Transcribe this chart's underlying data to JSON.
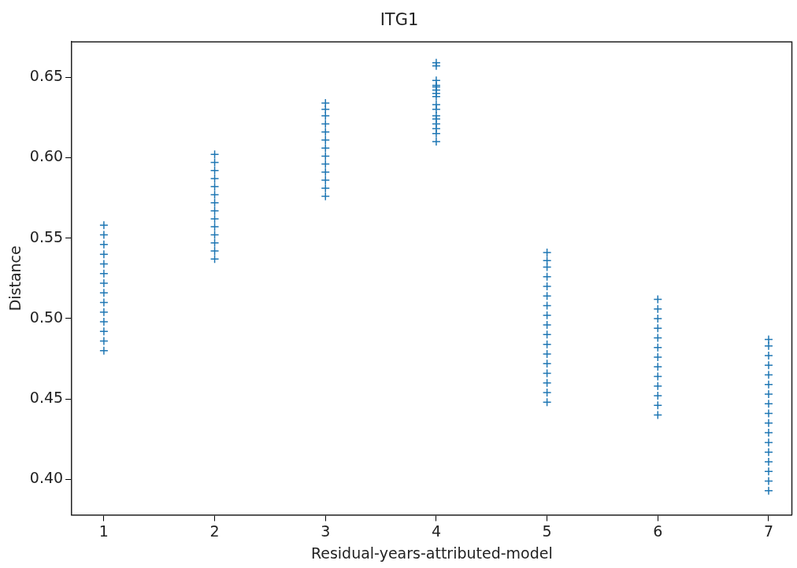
{
  "chart_data": {
    "type": "scatter",
    "title": "ITG1",
    "xlabel": "Residual-years-attributed-model",
    "ylabel": "Distance",
    "x": [
      1,
      1,
      1,
      1,
      1,
      1,
      1,
      1,
      1,
      1,
      1,
      1,
      1,
      1,
      2,
      2,
      2,
      2,
      2,
      2,
      2,
      2,
      2,
      2,
      2,
      2,
      2,
      2,
      3,
      3,
      3,
      3,
      3,
      3,
      3,
      3,
      3,
      3,
      3,
      3,
      3,
      4,
      4,
      4,
      4,
      4,
      4,
      4,
      4,
      4,
      4,
      4,
      4,
      4,
      4,
      4,
      4,
      5,
      5,
      5,
      5,
      5,
      5,
      5,
      5,
      5,
      5,
      5,
      5,
      5,
      5,
      5,
      5,
      5,
      6,
      6,
      6,
      6,
      6,
      6,
      6,
      6,
      6,
      6,
      6,
      6,
      6,
      7,
      7,
      7,
      7,
      7,
      7,
      7,
      7,
      7,
      7,
      7,
      7,
      7,
      7,
      7,
      7,
      7
    ],
    "series": [
      {
        "color": "#1f77b4",
        "values": [
          0.48,
          0.486,
          0.492,
          0.498,
          0.504,
          0.51,
          0.516,
          0.522,
          0.528,
          0.534,
          0.54,
          0.546,
          0.552,
          0.558,
          0.537,
          0.542,
          0.547,
          0.552,
          0.557,
          0.562,
          0.567,
          0.572,
          0.577,
          0.582,
          0.587,
          0.592,
          0.597,
          0.602,
          0.576,
          0.581,
          0.586,
          0.591,
          0.596,
          0.601,
          0.606,
          0.611,
          0.616,
          0.621,
          0.626,
          0.63,
          0.634,
          0.61,
          0.615,
          0.618,
          0.621,
          0.624,
          0.626,
          0.63,
          0.633,
          0.638,
          0.64,
          0.642,
          0.644,
          0.645,
          0.648,
          0.657,
          0.659,
          0.448,
          0.454,
          0.46,
          0.466,
          0.472,
          0.478,
          0.484,
          0.49,
          0.496,
          0.502,
          0.508,
          0.514,
          0.52,
          0.526,
          0.532,
          0.536,
          0.541,
          0.44,
          0.446,
          0.452,
          0.458,
          0.464,
          0.47,
          0.476,
          0.482,
          0.488,
          0.494,
          0.5,
          0.506,
          0.512,
          0.393,
          0.399,
          0.405,
          0.411,
          0.417,
          0.423,
          0.429,
          0.435,
          0.441,
          0.447,
          0.453,
          0.459,
          0.465,
          0.471,
          0.477,
          0.483,
          0.487
        ]
      }
    ],
    "xlim": [
      0.71,
      7.21
    ],
    "xticks": [
      1,
      2,
      3,
      4,
      5,
      6,
      7
    ],
    "ylim": [
      0.378,
      0.672
    ],
    "yticks": [
      {
        "value": 0.4,
        "label": "0.40"
      },
      {
        "value": 0.45,
        "label": "0.45"
      },
      {
        "value": 0.5,
        "label": "0.50"
      },
      {
        "value": 0.55,
        "label": "0.55"
      },
      {
        "value": 0.6,
        "label": "0.60"
      },
      {
        "value": 0.65,
        "label": "0.65"
      }
    ],
    "marker": "cross",
    "grid": false,
    "legend": false
  }
}
